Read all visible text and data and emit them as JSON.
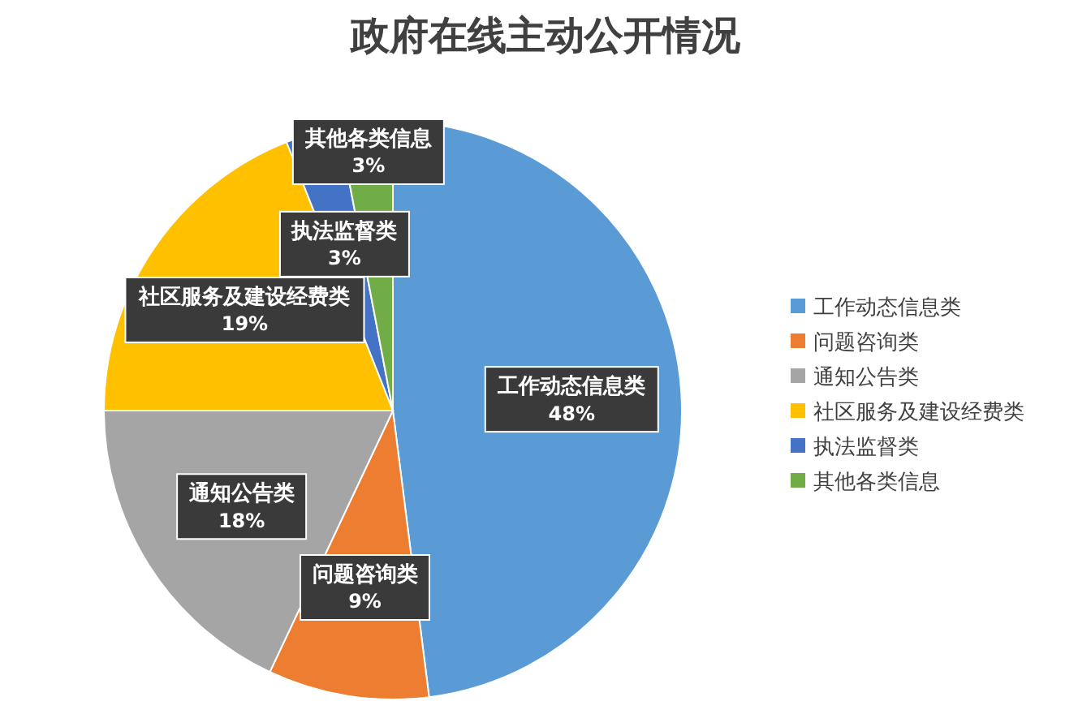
{
  "chart_data": {
    "type": "pie",
    "title": "政府在线主动公开情况",
    "categories": [
      "工作动态信息类",
      "问题咨询类",
      "通知公告类",
      "社区服务及建设经费类",
      "执法监督类",
      "其他各类信息"
    ],
    "values": [
      48,
      9,
      18,
      19,
      3,
      3
    ],
    "value_labels": [
      "48%",
      "9%",
      "18%",
      "19%",
      "3%",
      "3%"
    ],
    "colors": [
      "#5b9bd5",
      "#ed7d31",
      "#a5a5a5",
      "#ffc000",
      "#4472c4",
      "#70ad47"
    ],
    "legend": "right"
  }
}
